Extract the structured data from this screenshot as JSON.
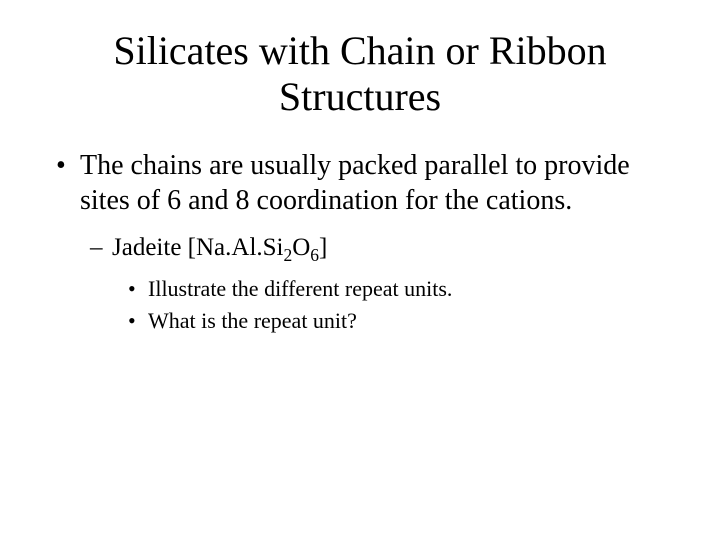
{
  "background_color": "#ffffff",
  "text_color": "#000000",
  "font_family": "Times New Roman",
  "title": {
    "text": "Silicates with Chain or Ribbon Structures",
    "fontsize": 40,
    "align": "center"
  },
  "bullets": {
    "level1_marker": "•",
    "level2_marker": "–",
    "level3_marker": "•",
    "level1_fontsize": 28,
    "level2_fontsize": 25,
    "level3_fontsize": 22,
    "items": [
      {
        "level": 1,
        "text": "The chains are usually packed parallel to provide sites of 6 and 8 coordination for the cations."
      },
      {
        "level": 2,
        "prefix": "Jadeite [Na.Al.Si",
        "sub1": "2",
        "mid": "O",
        "sub2": "6",
        "suffix": "]"
      },
      {
        "level": 3,
        "text": "Illustrate the different repeat units."
      },
      {
        "level": 3,
        "text": "What is the repeat unit?"
      }
    ]
  }
}
